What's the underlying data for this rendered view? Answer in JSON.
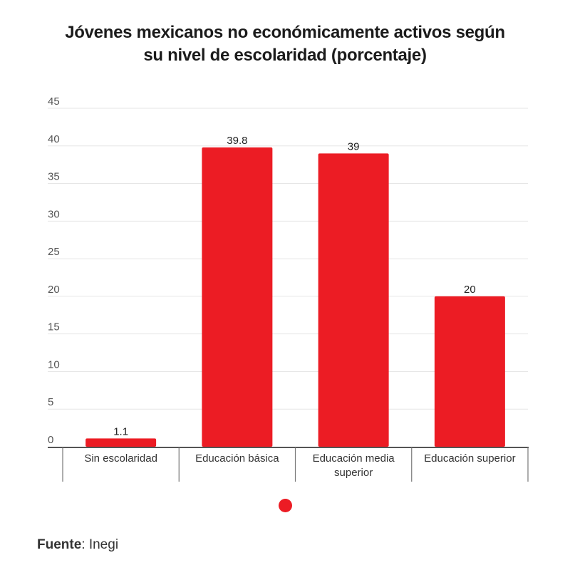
{
  "chart_data": {
    "type": "bar",
    "title": "Jóvenes mexicanos no económicamente activos según su nivel de escolaridad (porcentaje)",
    "title_lines": [
      "Jóvenes mexicanos no económicamente activos según",
      "su nivel de escolaridad (porcentaje)"
    ],
    "categories": [
      "Sin escolaridad",
      "Educación básica",
      "Educación media superior",
      "Educación superior"
    ],
    "category_label_lines": [
      [
        "Sin escolaridad"
      ],
      [
        "Educación básica"
      ],
      [
        "Educación media",
        "superior"
      ],
      [
        "Educación superior"
      ]
    ],
    "values": [
      1.1,
      39.8,
      39,
      20
    ],
    "data_labels": [
      "1.1",
      "39.8",
      "39",
      "20"
    ],
    "xlabel": "",
    "ylabel": "",
    "ylim": [
      0,
      45
    ],
    "yticks": [
      0,
      5,
      10,
      15,
      20,
      25,
      30,
      35,
      40,
      45
    ],
    "grid": true,
    "legend": "bottom-center",
    "colors": {
      "bar": "#ec1c24",
      "grid": "#e6e6e6",
      "axis": "#555555",
      "text": "#333333"
    }
  },
  "source": {
    "label": "Fuente",
    "value": ": Inegi"
  }
}
